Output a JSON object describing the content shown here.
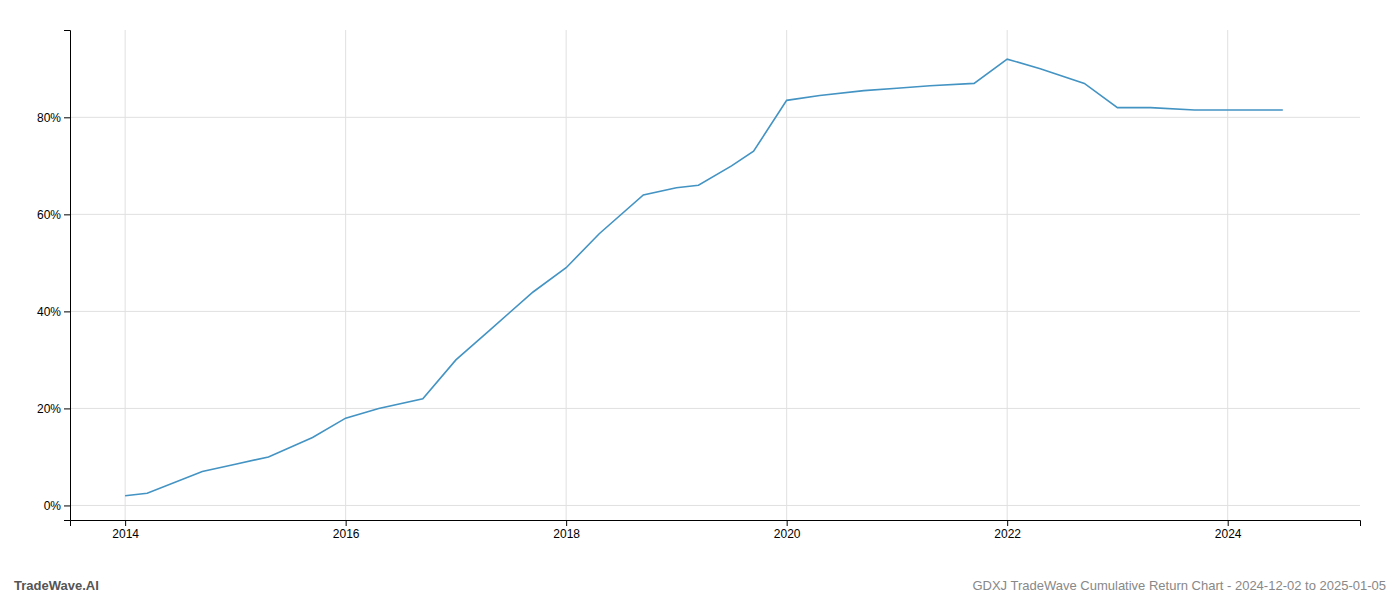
{
  "chart_data": {
    "type": "line",
    "x": [
      2014.0,
      2014.2,
      2014.7,
      2015.0,
      2015.3,
      2015.7,
      2016.0,
      2016.3,
      2016.7,
      2017.0,
      2017.3,
      2017.7,
      2018.0,
      2018.3,
      2018.7,
      2019.0,
      2019.2,
      2019.5,
      2019.7,
      2020.0,
      2020.3,
      2020.7,
      2021.0,
      2021.3,
      2021.7,
      2022.0,
      2022.3,
      2022.7,
      2023.0,
      2023.3,
      2023.7,
      2024.0,
      2024.5
    ],
    "values": [
      2.0,
      2.5,
      7.0,
      8.5,
      10.0,
      14.0,
      18.0,
      20.0,
      22.0,
      30.0,
      36.0,
      44.0,
      49.0,
      56.0,
      64.0,
      65.5,
      66.0,
      70.0,
      73.0,
      83.5,
      84.5,
      85.5,
      86.0,
      86.5,
      87.0,
      92.0,
      90.0,
      87.0,
      82.0,
      82.0,
      81.5,
      81.5,
      81.5
    ],
    "color": "#4393c3",
    "xlim": [
      2013.5,
      2025.2
    ],
    "ylim": [
      -3,
      98
    ],
    "xticks": [
      2014,
      2016,
      2018,
      2020,
      2022,
      2024
    ],
    "yticks": [
      {
        "value": 0,
        "label": "0%"
      },
      {
        "value": 20,
        "label": "20%"
      },
      {
        "value": 40,
        "label": "40%"
      },
      {
        "value": 60,
        "label": "60%"
      },
      {
        "value": 80,
        "label": "80%"
      }
    ],
    "grid": true,
    "annotations": [
      "TradeWave.AI",
      "GDXJ TradeWave Cumulative Return Chart - 2024-12-02 to 2025-01-05"
    ]
  }
}
